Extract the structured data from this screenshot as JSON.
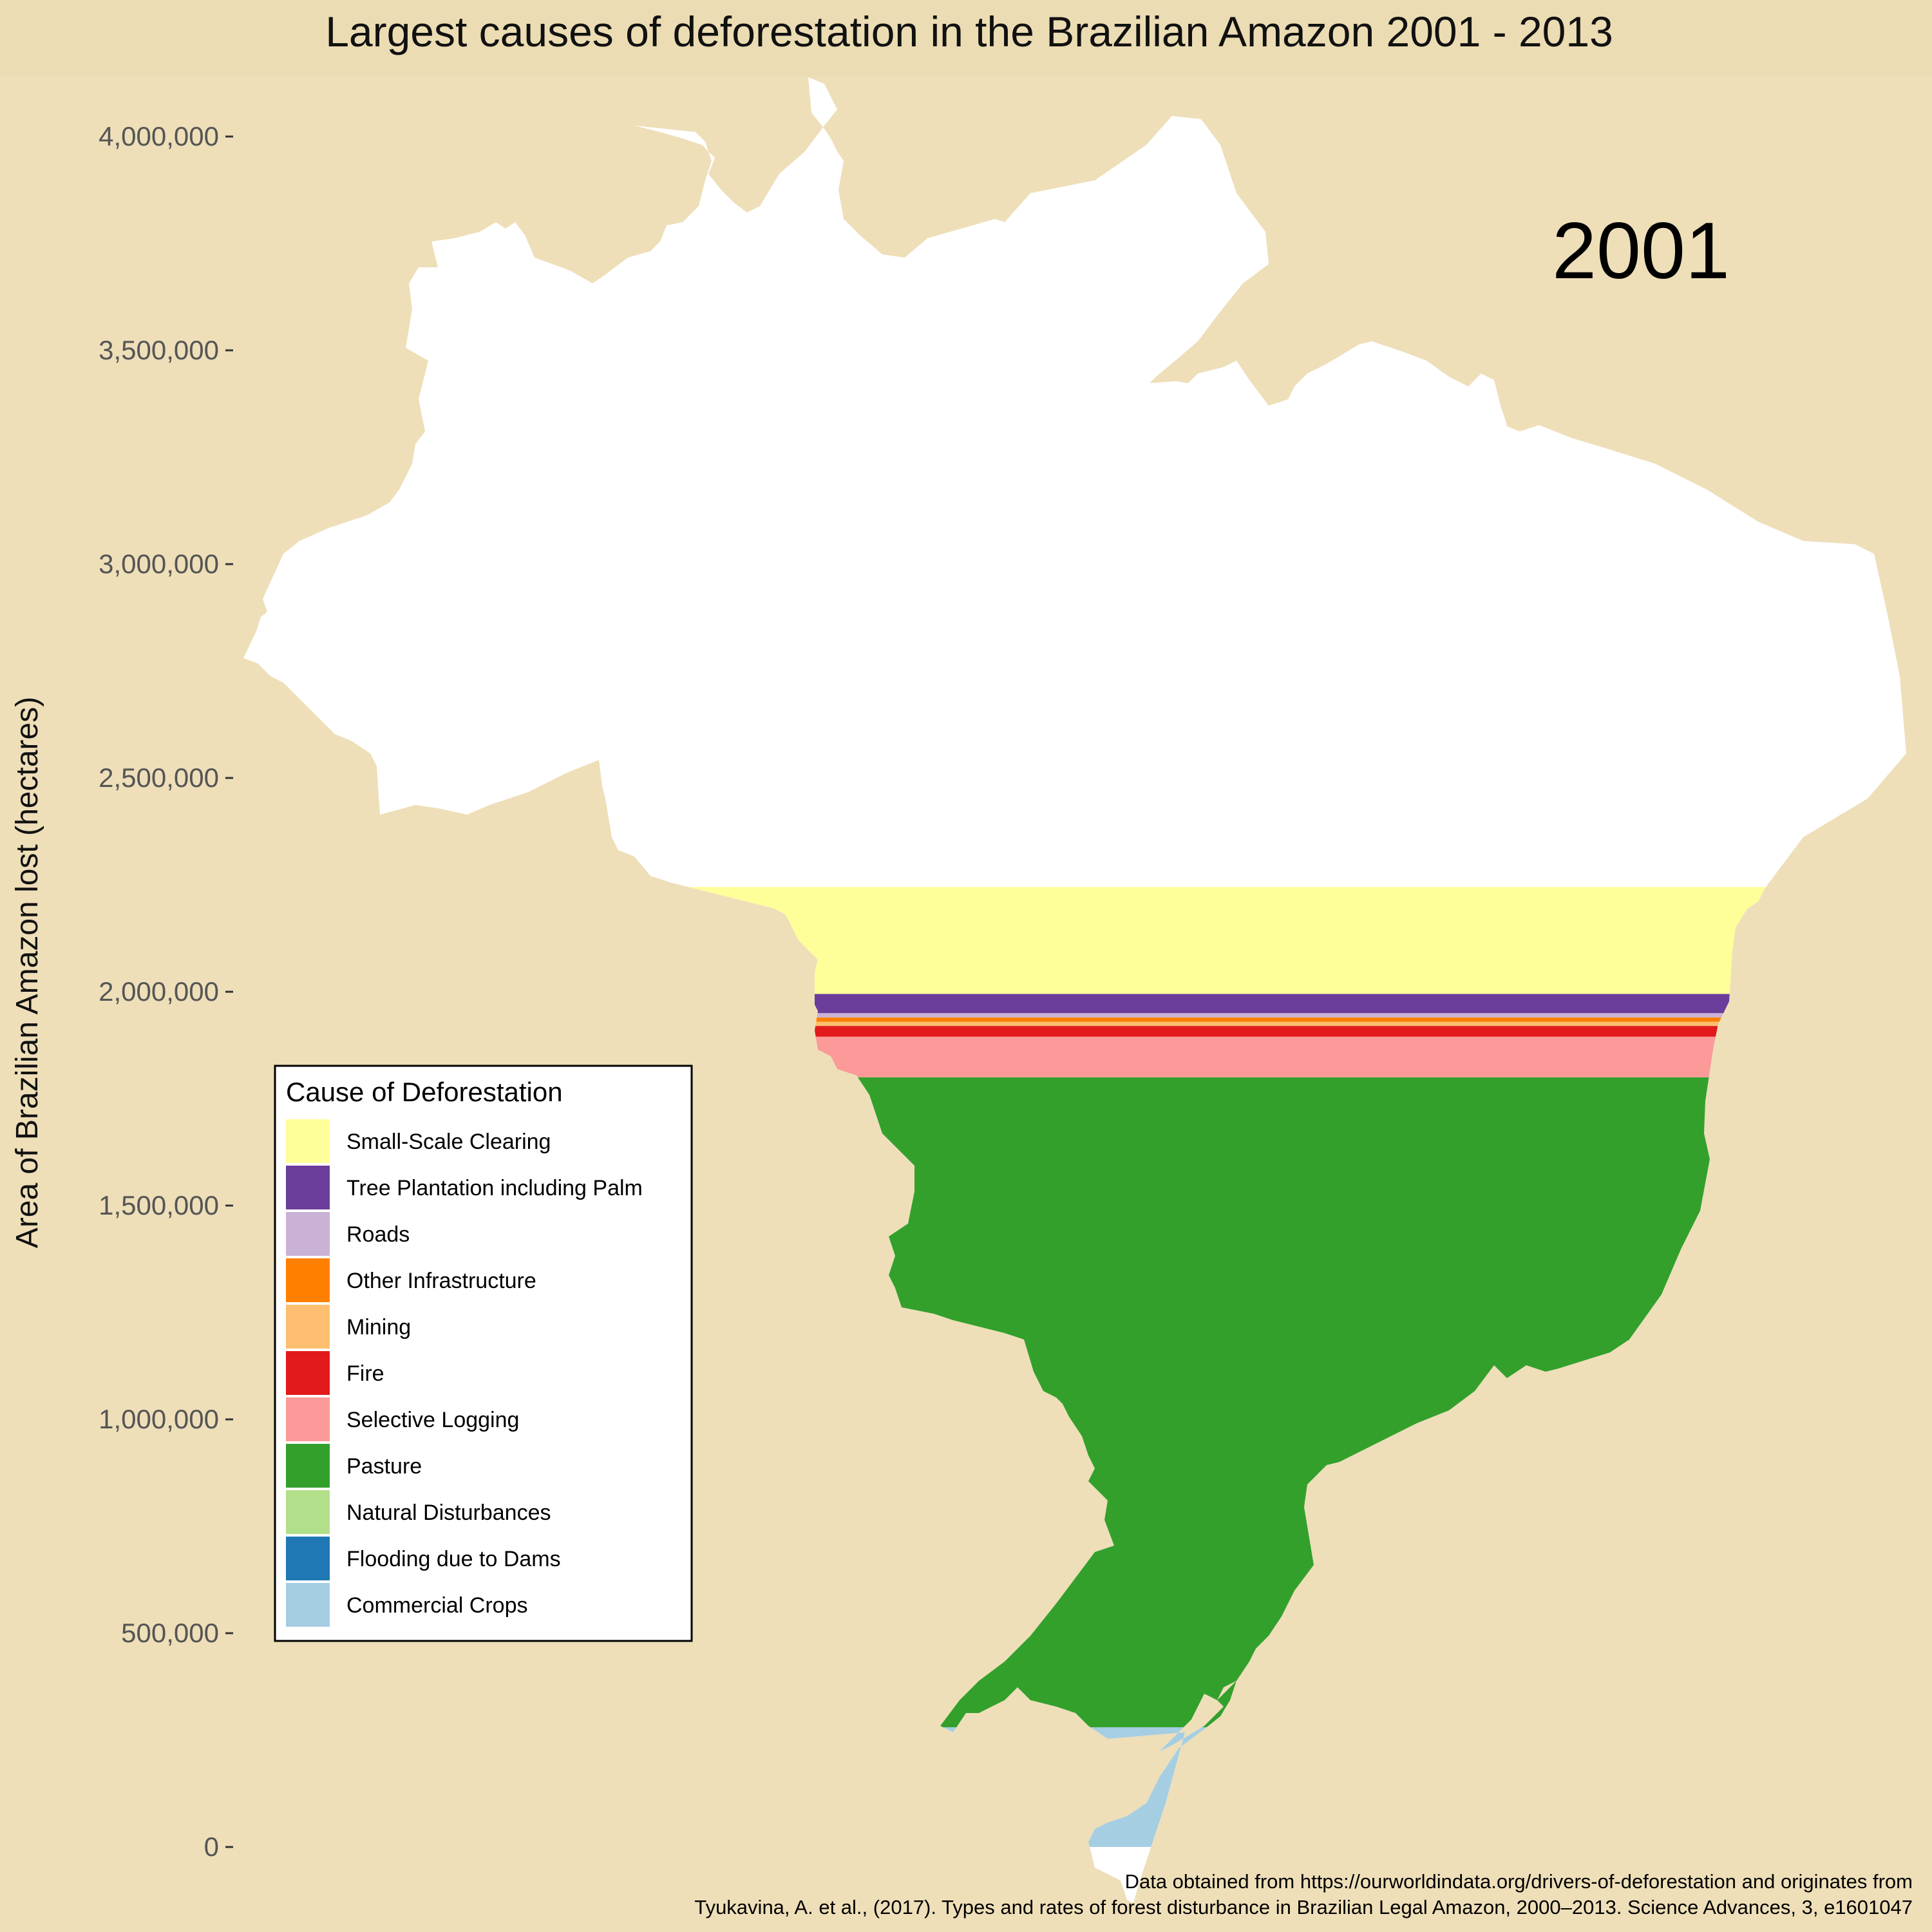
{
  "chart_data": {
    "type": "area",
    "title": "Largest causes of deforestation in the Brazilian Amazon 2001 - 2013",
    "ylabel": "Area of Brazilian Amazon lost (hectares)",
    "ylim": [
      0,
      4000000
    ],
    "y_ticks": [
      "0",
      "500,000",
      "1,000,000",
      "1,500,000",
      "2,000,000",
      "2,500,000",
      "3,000,000",
      "3,500,000",
      "4,000,000"
    ],
    "y_tick_values": [
      0,
      500000,
      1000000,
      1500000,
      2000000,
      2500000,
      3000000,
      3500000,
      4000000
    ],
    "year": "2001",
    "legend_title": "Cause of Deforestation",
    "legend_position": "left",
    "grid": false,
    "series": [
      {
        "name": "Commercial Crops",
        "value": 280000,
        "color": "#a6cee3"
      },
      {
        "name": "Flooding due to Dams",
        "value": 0,
        "color": "#1f78b4"
      },
      {
        "name": "Natural Disturbances",
        "value": 0,
        "color": "#b2df8a"
      },
      {
        "name": "Pasture",
        "value": 1520000,
        "color": "#33a02c"
      },
      {
        "name": "Selective Logging",
        "value": 95000,
        "color": "#fb9a99"
      },
      {
        "name": "Fire",
        "value": 25000,
        "color": "#e31a1c"
      },
      {
        "name": "Mining",
        "value": 10000,
        "color": "#fdbf6f"
      },
      {
        "name": "Other Infrastructure",
        "value": 10000,
        "color": "#ff7f00"
      },
      {
        "name": "Roads",
        "value": 10000,
        "color": "#cab2d6"
      },
      {
        "name": "Tree Plantation including Palm",
        "value": 45000,
        "color": "#6a3d9a"
      },
      {
        "name": "Small-Scale Clearing",
        "value": 250000,
        "color": "#ffff99"
      }
    ],
    "legend_order": [
      "Small-Scale Clearing",
      "Tree Plantation including Palm",
      "Roads",
      "Other Infrastructure",
      "Mining",
      "Fire",
      "Selective Logging",
      "Pasture",
      "Natural Disturbances",
      "Flooding due to Dams",
      "Commercial Crops"
    ]
  },
  "source_line1": "Data obtained from https://ourworldindata.org/drivers-of-deforestation and originates from",
  "source_line2": "Tyukavina, A. et al., (2017). Types and rates of forest disturbance in Brazilian Legal Amazon, 2000–2013. Science Advances, 3, e1601047",
  "colors": {
    "background": "#eedfb9",
    "map_fill": "#ffffff"
  }
}
